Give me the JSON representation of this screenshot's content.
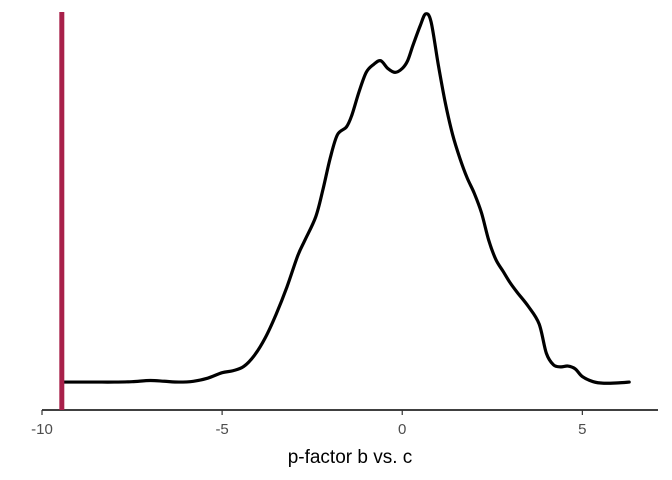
{
  "chart_data": {
    "type": "line",
    "subtype": "density",
    "title": "",
    "xlabel": "p-factor b vs. c",
    "ylabel": "",
    "xlim": [
      -10,
      7.1
    ],
    "ylim": [
      0,
      1.0
    ],
    "x_ticks": [
      -10,
      -5,
      0,
      5
    ],
    "x_tick_labels": [
      "-10",
      "-5",
      "0",
      "5"
    ],
    "grid": false,
    "legend": "none",
    "series": [
      {
        "color": "#000000",
        "x": [
          -9.45,
          -9.0,
          -8.5,
          -8.0,
          -7.5,
          -7.0,
          -6.6,
          -6.2,
          -5.8,
          -5.4,
          -5.0,
          -4.7,
          -4.4,
          -4.1,
          -3.8,
          -3.5,
          -3.2,
          -2.9,
          -2.7,
          -2.4,
          -2.2,
          -2.0,
          -1.8,
          -1.55,
          -1.4,
          -1.2,
          -1.0,
          -0.8,
          -0.6,
          -0.4,
          -0.2,
          0.0,
          0.15,
          0.3,
          0.5,
          0.65,
          0.8,
          1.0,
          1.2,
          1.4,
          1.6,
          1.8,
          2.0,
          2.2,
          2.4,
          2.6,
          2.8,
          3.0,
          3.2,
          3.5,
          3.8,
          4.0,
          4.2,
          4.4,
          4.6,
          4.8,
          5.0,
          5.3,
          5.6,
          6.0,
          6.3
        ],
        "y": [
          0.046,
          0.046,
          0.046,
          0.046,
          0.047,
          0.05,
          0.048,
          0.046,
          0.048,
          0.056,
          0.07,
          0.075,
          0.086,
          0.115,
          0.16,
          0.22,
          0.29,
          0.37,
          0.41,
          0.47,
          0.54,
          0.62,
          0.68,
          0.7,
          0.73,
          0.79,
          0.84,
          0.86,
          0.87,
          0.85,
          0.84,
          0.85,
          0.87,
          0.91,
          0.96,
          0.99,
          0.97,
          0.86,
          0.76,
          0.68,
          0.62,
          0.57,
          0.53,
          0.48,
          0.41,
          0.36,
          0.33,
          0.3,
          0.275,
          0.24,
          0.195,
          0.12,
          0.09,
          0.085,
          0.087,
          0.08,
          0.06,
          0.047,
          0.043,
          0.044,
          0.046
        ]
      }
    ],
    "reference_line": {
      "x": -9.45,
      "color": "#a8204a"
    }
  }
}
